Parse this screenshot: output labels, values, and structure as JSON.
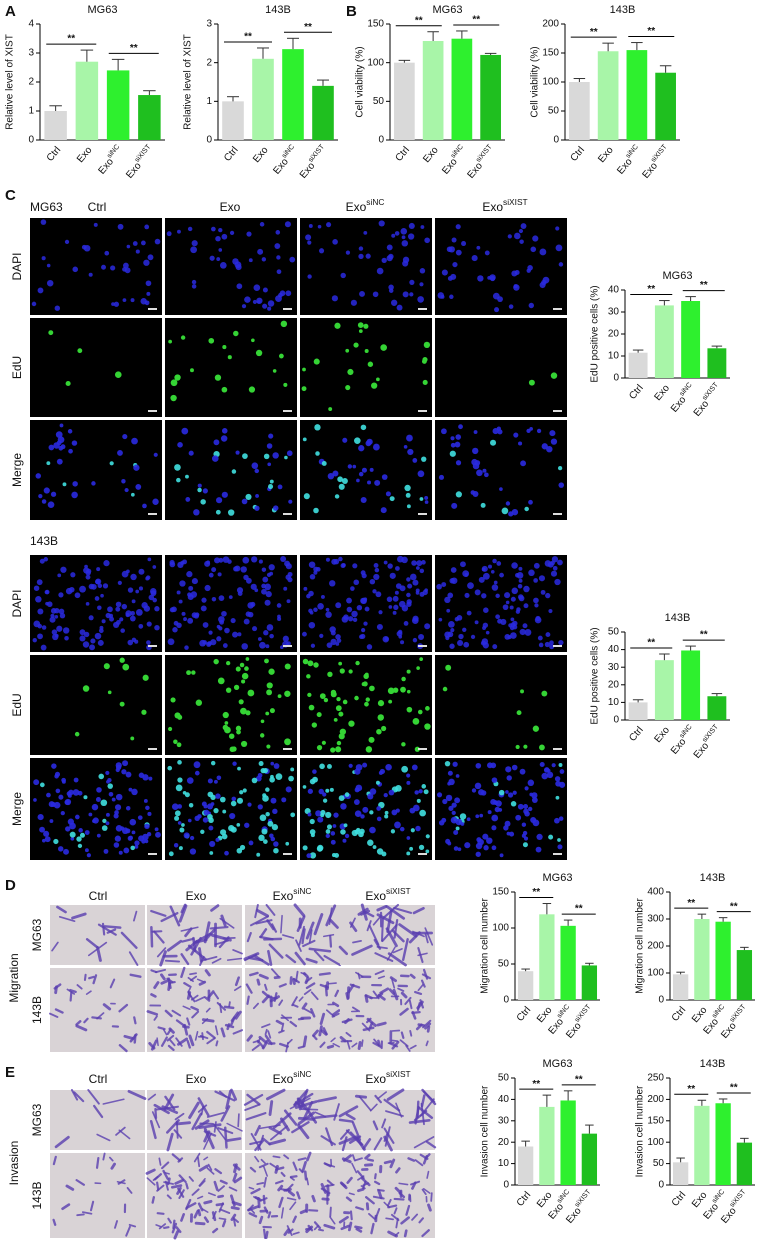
{
  "panel_labels": [
    "A",
    "B",
    "C",
    "D",
    "E"
  ],
  "edu": {
    "cell_lines": [
      "MG63",
      "143B"
    ],
    "columns": [
      "Ctrl",
      "Exo",
      "Exo",
      "Exo"
    ],
    "column_superscripts": [
      null,
      null,
      "siNC",
      "siXIST"
    ],
    "rows": [
      "DAPI",
      "EdU",
      "Merge"
    ]
  },
  "transwell": {
    "columns": [
      "Ctrl",
      "Exo",
      "Exo",
      "Exo"
    ],
    "column_superscripts": [
      null,
      null,
      "siNC",
      "siXIST"
    ],
    "assays": [
      "Migration",
      "Invasion"
    ],
    "cell_lines": [
      "MG63",
      "143B"
    ]
  },
  "chart_data": [
    {
      "type": "bar",
      "title": "MG63",
      "y_label": "Relative level of XIST",
      "categories": [
        "Ctrl",
        "Exo",
        "Exo",
        "Exo"
      ],
      "category_superscripts": [
        null,
        null,
        "siNC",
        "siXIST"
      ],
      "values": [
        1,
        2.7,
        2.4,
        1.55
      ],
      "errors": [
        0.18,
        0.4,
        0.38,
        0.15
      ],
      "colors": [
        "#d9d9d9",
        "#a8f5a8",
        "#2ef02e",
        "#1fbf1f"
      ],
      "ylim": [
        0,
        4
      ],
      "yticks": [
        0,
        1,
        2,
        3,
        4
      ],
      "annotations": [
        "**",
        "**"
      ]
    },
    {
      "type": "bar",
      "title": "143B",
      "y_label": "Relative level of XIST",
      "categories": [
        "Ctrl",
        "Exo",
        "Exo",
        "Exo"
      ],
      "category_superscripts": [
        null,
        null,
        "siNC",
        "siXIST"
      ],
      "values": [
        1,
        2.1,
        2.35,
        1.4
      ],
      "errors": [
        0.12,
        0.28,
        0.28,
        0.15
      ],
      "colors": [
        "#d9d9d9",
        "#a8f5a8",
        "#2ef02e",
        "#1fbf1f"
      ],
      "ylim": [
        0,
        3
      ],
      "yticks": [
        0,
        1,
        2,
        3
      ],
      "annotations": [
        "**",
        "**"
      ]
    },
    {
      "type": "bar",
      "title": "MG63",
      "y_label": "Cell viability (%)",
      "categories": [
        "Ctrl",
        "Exo",
        "Exo",
        "Exo"
      ],
      "category_superscripts": [
        null,
        null,
        "siNC",
        "siXIST"
      ],
      "values": [
        100,
        128,
        131,
        110
      ],
      "errors": [
        3,
        12,
        10,
        2
      ],
      "colors": [
        "#d9d9d9",
        "#a8f5a8",
        "#2ef02e",
        "#1fbf1f"
      ],
      "ylim": [
        0,
        150
      ],
      "yticks": [
        0,
        50,
        100,
        150
      ],
      "annotations": [
        "**",
        "**"
      ]
    },
    {
      "type": "bar",
      "title": "143B",
      "y_label": "Cell viability (%)",
      "categories": [
        "Ctrl",
        "Exo",
        "Exo",
        "Exo"
      ],
      "category_superscripts": [
        null,
        null,
        "siNC",
        "siXIST"
      ],
      "values": [
        100,
        153,
        155,
        116
      ],
      "errors": [
        6,
        14,
        13,
        12
      ],
      "colors": [
        "#d9d9d9",
        "#a8f5a8",
        "#2ef02e",
        "#1fbf1f"
      ],
      "ylim": [
        0,
        200
      ],
      "yticks": [
        0,
        50,
        100,
        150,
        200
      ],
      "annotations": [
        "**",
        "**"
      ]
    },
    {
      "type": "bar",
      "title": "MG63",
      "y_label": "EdU positive cells (%)",
      "categories": [
        "Ctrl",
        "Exo",
        "Exo",
        "Exo"
      ],
      "category_superscripts": [
        null,
        null,
        "siNC",
        "siXIST"
      ],
      "values": [
        11.5,
        33,
        35,
        13.5
      ],
      "errors": [
        1.2,
        2.2,
        2,
        1
      ],
      "colors": [
        "#d9d9d9",
        "#a8f5a8",
        "#2ef02e",
        "#1fbf1f"
      ],
      "ylim": [
        0,
        40
      ],
      "yticks": [
        0,
        10,
        20,
        30,
        40
      ],
      "annotations": [
        "**",
        "**"
      ]
    },
    {
      "type": "bar",
      "title": "143B",
      "y_label": "EdU positive cells (%)",
      "categories": [
        "Ctrl",
        "Exo",
        "Exo",
        "Exo"
      ],
      "category_superscripts": [
        null,
        null,
        "siNC",
        "siXIST"
      ],
      "values": [
        10,
        34,
        39.5,
        13.5
      ],
      "errors": [
        1.5,
        3.5,
        2.5,
        1.5
      ],
      "colors": [
        "#d9d9d9",
        "#a8f5a8",
        "#2ef02e",
        "#1fbf1f"
      ],
      "ylim": [
        0,
        50
      ],
      "yticks": [
        0,
        10,
        20,
        30,
        40,
        50
      ],
      "annotations": [
        "**",
        "**"
      ]
    },
    {
      "type": "bar",
      "title": "MG63",
      "y_label": "Migration cell number",
      "categories": [
        "Ctrl",
        "Exo",
        "Exo",
        "Exo"
      ],
      "category_superscripts": [
        null,
        null,
        "siNC",
        "siXIST"
      ],
      "values": [
        40,
        119,
        103,
        48
      ],
      "errors": [
        3,
        15,
        8,
        3
      ],
      "colors": [
        "#d9d9d9",
        "#a8f5a8",
        "#2ef02e",
        "#1fbf1f"
      ],
      "ylim": [
        0,
        150
      ],
      "yticks": [
        0,
        50,
        100,
        150
      ],
      "annotations": [
        "**",
        "**"
      ]
    },
    {
      "type": "bar",
      "title": "143B",
      "y_label": "Migration cell number",
      "categories": [
        "Ctrl",
        "Exo",
        "Exo",
        "Exo"
      ],
      "category_superscripts": [
        null,
        null,
        "siNC",
        "siXIST"
      ],
      "values": [
        95,
        300,
        290,
        185
      ],
      "errors": [
        8,
        18,
        15,
        10
      ],
      "colors": [
        "#d9d9d9",
        "#a8f5a8",
        "#2ef02e",
        "#1fbf1f"
      ],
      "ylim": [
        0,
        400
      ],
      "yticks": [
        0,
        100,
        200,
        300,
        400
      ],
      "annotations": [
        "**",
        "**"
      ]
    },
    {
      "type": "bar",
      "title": "MG63",
      "y_label": "Invasion cell number",
      "categories": [
        "Ctrl",
        "Exo",
        "Exo",
        "Exo"
      ],
      "category_superscripts": [
        null,
        null,
        "siNC",
        "siXIST"
      ],
      "values": [
        18,
        36.5,
        39.5,
        24
      ],
      "errors": [
        2.5,
        5.5,
        4.5,
        4
      ],
      "colors": [
        "#d9d9d9",
        "#a8f5a8",
        "#2ef02e",
        "#1fbf1f"
      ],
      "ylim": [
        0,
        50
      ],
      "yticks": [
        0,
        10,
        20,
        30,
        40,
        50
      ],
      "annotations": [
        "**",
        "**"
      ]
    },
    {
      "type": "bar",
      "title": "143B",
      "y_label": "Invasion cell number",
      "categories": [
        "Ctrl",
        "Exo",
        "Exo",
        "Exo"
      ],
      "category_superscripts": [
        null,
        null,
        "siNC",
        "siXIST"
      ],
      "values": [
        53,
        185,
        191,
        99
      ],
      "errors": [
        10,
        13,
        10,
        10
      ],
      "colors": [
        "#d9d9d9",
        "#a8f5a8",
        "#2ef02e",
        "#1fbf1f"
      ],
      "ylim": [
        0,
        250
      ],
      "yticks": [
        0,
        50,
        100,
        150,
        200,
        250
      ],
      "annotations": [
        "**",
        "**"
      ]
    }
  ]
}
